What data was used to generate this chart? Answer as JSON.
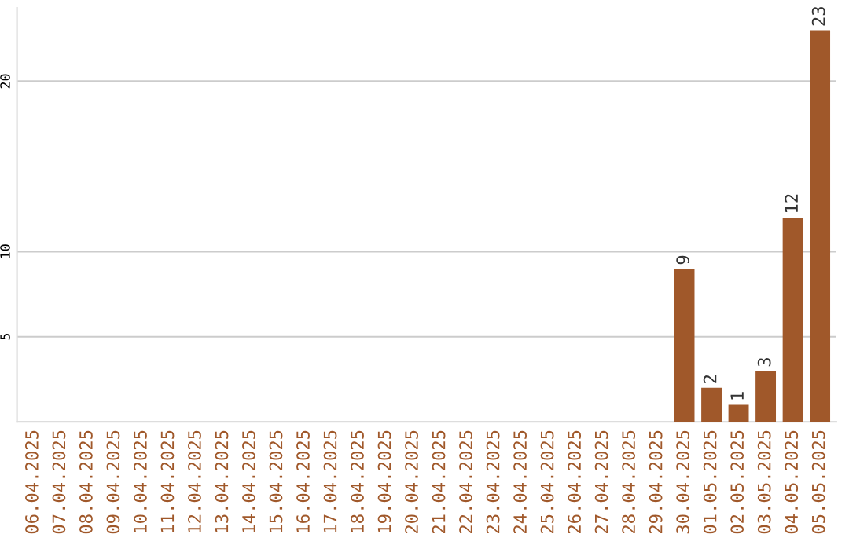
{
  "chart_data": {
    "type": "bar",
    "categories": [
      "06.04.2025",
      "07.04.2025",
      "08.04.2025",
      "09.04.2025",
      "10.04.2025",
      "11.04.2025",
      "12.04.2025",
      "13.04.2025",
      "14.04.2025",
      "15.04.2025",
      "16.04.2025",
      "17.04.2025",
      "18.04.2025",
      "19.04.2025",
      "20.04.2025",
      "21.04.2025",
      "22.04.2025",
      "23.04.2025",
      "24.04.2025",
      "25.04.2025",
      "26.04.2025",
      "27.04.2025",
      "28.04.2025",
      "29.04.2025",
      "30.04.2025",
      "01.05.2025",
      "02.05.2025",
      "03.05.2025",
      "04.05.2025",
      "05.05.2025"
    ],
    "values": [
      0,
      0,
      0,
      0,
      0,
      0,
      0,
      0,
      0,
      0,
      0,
      0,
      0,
      0,
      0,
      0,
      0,
      0,
      0,
      0,
      0,
      0,
      0,
      0,
      9,
      2,
      1,
      3,
      12,
      23
    ],
    "value_labels": [
      null,
      null,
      null,
      null,
      null,
      null,
      null,
      null,
      null,
      null,
      null,
      null,
      null,
      null,
      null,
      null,
      null,
      null,
      null,
      null,
      null,
      null,
      null,
      null,
      "9",
      "2",
      "1",
      "3",
      "12",
      "23"
    ],
    "color": "#a0582a",
    "ylim": [
      0,
      24.3
    ],
    "yticks": [
      5,
      10,
      20
    ],
    "grid": "y",
    "legend": false
  }
}
